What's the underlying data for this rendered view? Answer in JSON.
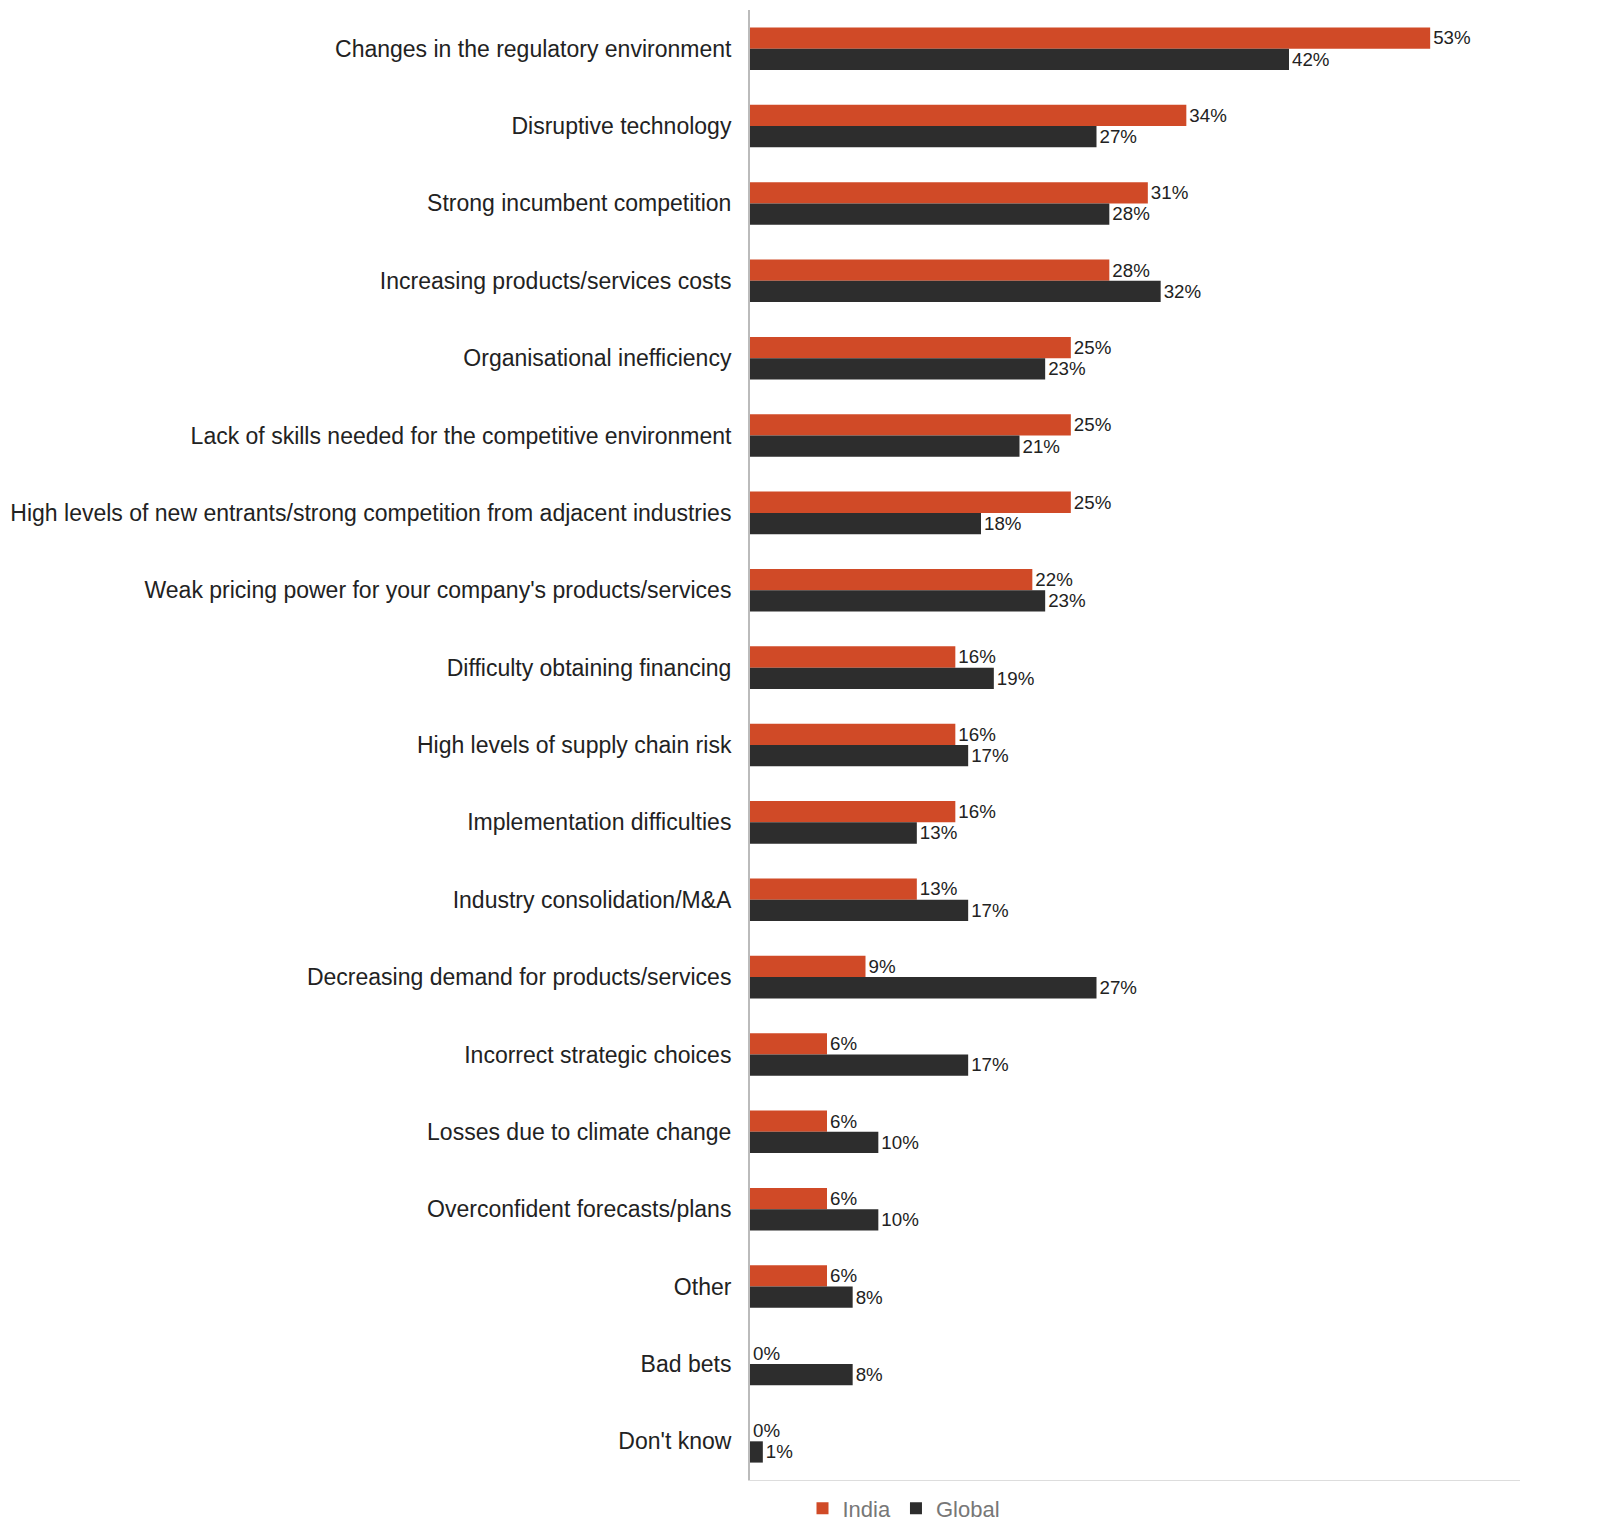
{
  "chart_data": {
    "type": "bar",
    "orientation": "horizontal",
    "categories": [
      "Changes in the regulatory environment",
      "Disruptive technology",
      "Strong incumbent competition",
      "Increasing products/services costs",
      "Organisational inefficiency",
      "Lack of skills needed for the competitive environment",
      "High levels of new entrants/strong competition from adjacent industries",
      "Weak pricing power for your company's products/services",
      "Difficulty obtaining financing",
      "High levels of supply chain risk",
      "Implementation difficulties",
      "Industry consolidation/M&A",
      "Decreasing demand for products/services",
      "Incorrect strategic choices",
      "Losses due to climate change",
      "Overconfident forecasts/plans",
      "Other",
      "Bad bets",
      "Don't know"
    ],
    "series": [
      {
        "name": "India",
        "color": "#d04a27",
        "values": [
          53,
          34,
          31,
          28,
          25,
          25,
          25,
          22,
          16,
          16,
          16,
          13,
          9,
          6,
          6,
          6,
          6,
          0,
          0
        ],
        "value_labels": [
          "53%",
          "34%",
          "31%",
          "28%",
          "25%",
          "25%",
          "25%",
          "22%",
          "16%",
          "16%",
          "16%",
          "13%",
          "9%",
          "6%",
          "6%",
          "6%",
          "6%",
          "0%",
          "0%"
        ]
      },
      {
        "name": "Global",
        "color": "#2d2d2d",
        "values": [
          42,
          27,
          28,
          32,
          23,
          21,
          18,
          23,
          19,
          17,
          13,
          17,
          27,
          17,
          10,
          10,
          8,
          8,
          1
        ],
        "value_labels": [
          "42%",
          "27%",
          "28%",
          "32%",
          "23%",
          "21%",
          "18%",
          "23%",
          "19%",
          "17%",
          "13%",
          "17%",
          "27%",
          "17%",
          "10%",
          "10%",
          "8%",
          "8%",
          "1%"
        ]
      }
    ],
    "xlim": [
      0,
      60
    ],
    "data_labels": true,
    "tick_labels": "y",
    "grid": false,
    "legend": "bottom"
  }
}
